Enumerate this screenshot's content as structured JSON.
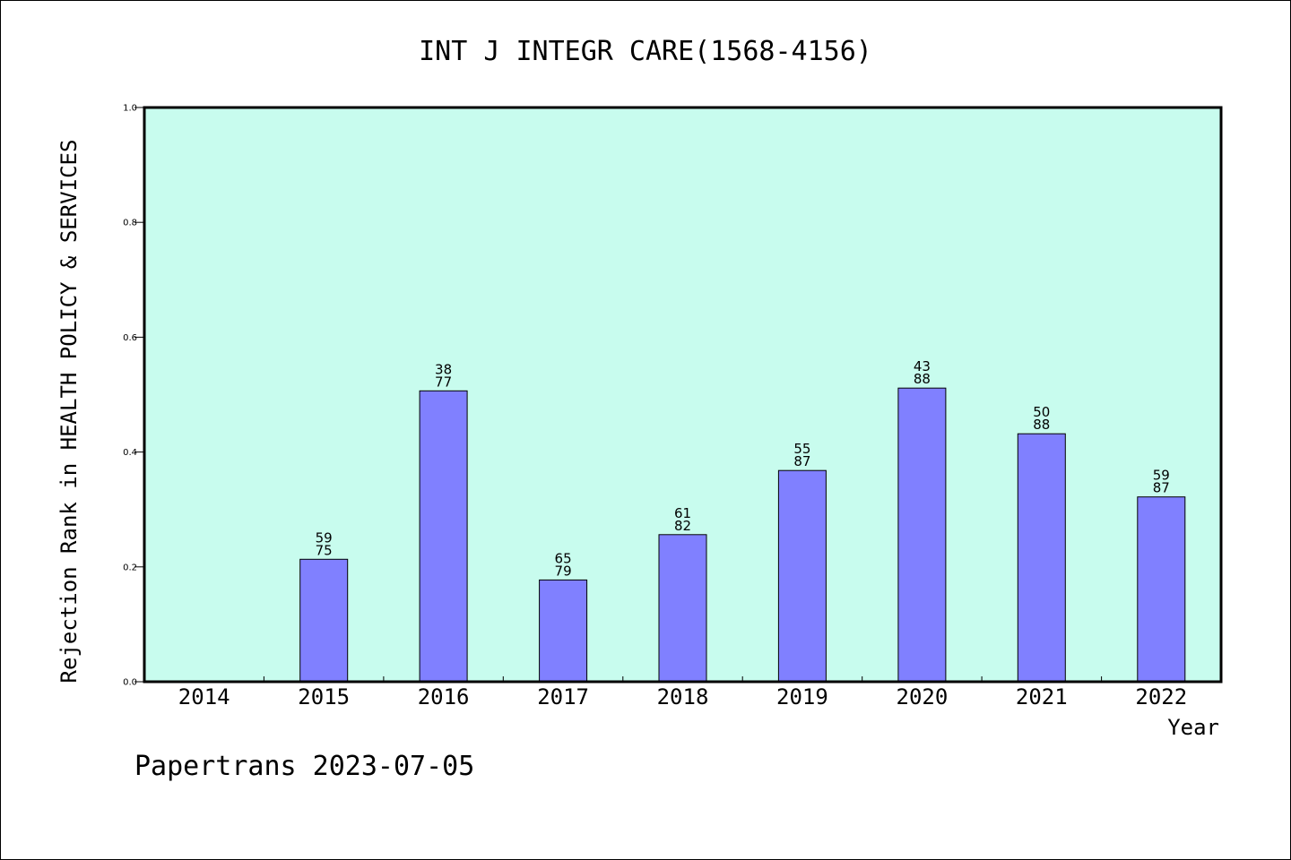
{
  "chart_data": {
    "type": "bar",
    "title": "INT J INTEGR CARE(1568-4156)",
    "ylabel": "Rejection Rank in HEALTH POLICY & SERVICES",
    "xlabel": "Year",
    "categories": [
      "2014",
      "2015",
      "2016",
      "2017",
      "2018",
      "2019",
      "2020",
      "2021",
      "2022"
    ],
    "values": [
      null,
      0.2133,
      0.5065,
      0.1772,
      0.2561,
      0.3678,
      0.5114,
      0.4318,
      0.3218
    ],
    "bar_labels": [
      null,
      [
        "59",
        "75"
      ],
      [
        "38",
        "77"
      ],
      [
        "65",
        "79"
      ],
      [
        "61",
        "82"
      ],
      [
        "55",
        "87"
      ],
      [
        "43",
        "88"
      ],
      [
        "50",
        "88"
      ],
      [
        "59",
        "87"
      ]
    ],
    "ylim": [
      0,
      1.0
    ],
    "yticks": [
      "0.0",
      "0.2",
      "0.4",
      "0.6",
      "0.8",
      "1.0"
    ],
    "plot_background": "#c8fcee",
    "bar_color": "#8080ff",
    "grid": false
  },
  "footer": {
    "text": "Papertrans 2023-07-05"
  }
}
